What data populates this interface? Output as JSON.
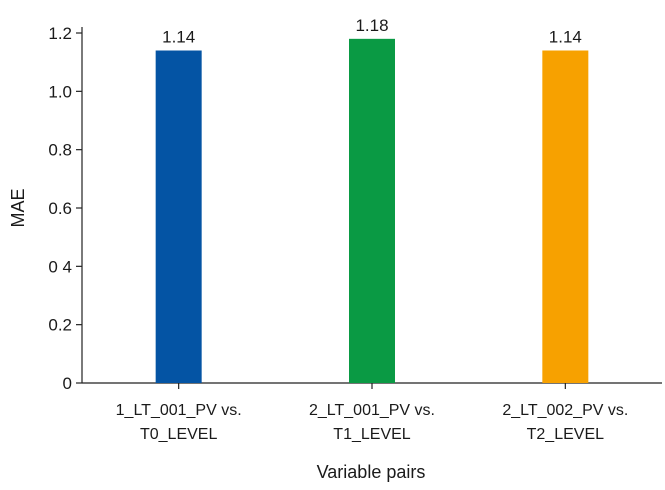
{
  "chart_data": {
    "type": "bar",
    "categories": [
      [
        "1_LT_001_PV vs.",
        "T0_LEVEL"
      ],
      [
        "2_LT_001_PV vs.",
        "T1_LEVEL"
      ],
      [
        "2_LT_002_PV vs.",
        "T2_LEVEL"
      ]
    ],
    "values": [
      1.14,
      1.18,
      1.14
    ],
    "data_labels": [
      "1.14",
      "1.18",
      "1.14"
    ],
    "bar_colors": [
      "#0454a4",
      "#0a9a44",
      "#f7a100"
    ],
    "xlabel": "Variable pairs",
    "ylabel": "MAE",
    "ylim": [
      0,
      1.2
    ],
    "yticks": [
      0,
      0.2,
      0.4,
      0.6,
      0.8,
      1.0,
      1.2
    ],
    "ytick_labels": [
      "0",
      "0.2",
      "0 4",
      "0.6",
      "0.8",
      "1.0",
      "1.2"
    ],
    "grid": false,
    "legend": "none"
  }
}
